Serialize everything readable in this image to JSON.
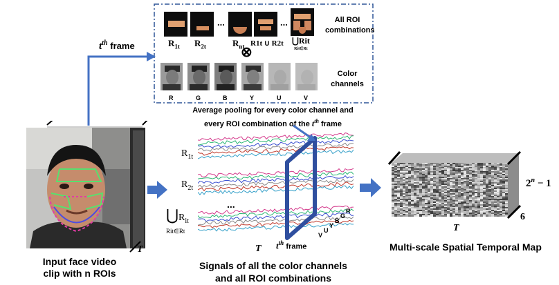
{
  "frame_label": {
    "base": "t",
    "sup": "th",
    "word": "frame"
  },
  "roi_row": {
    "labels": [
      {
        "base": "R",
        "sub": "1t"
      },
      {
        "base": "R",
        "sub": "2t"
      },
      {
        "base": "R",
        "sub": "nt"
      },
      {
        "text": "R1t ∪ R2t"
      }
    ],
    "dots": "...",
    "union_label": "⋃Rit",
    "union_sub": "Rit∈Rt",
    "caption_line1": "All ROI",
    "caption_line2": "combinations"
  },
  "tensor_symbol": "⊗",
  "channels": {
    "labels": [
      "R",
      "G",
      "B",
      "Y",
      "U",
      "V"
    ],
    "caption_line1": "Color",
    "caption_line2": "channels"
  },
  "pooling_caption": {
    "line1": "Average pooling for every color channel and",
    "line2": "every ROI combination of the",
    "line2_sup_base": "t",
    "line2_sup": "th",
    "line2_end": "frame"
  },
  "signals": {
    "r1t": {
      "base": "R",
      "sub": "1t"
    },
    "r2t": {
      "base": "R",
      "sub": "2t"
    },
    "dots": "...",
    "union": {
      "sym": "⋃",
      "base": "R",
      "sub": "it",
      "under": "Rit∈Rt"
    },
    "time_symbol": "T",
    "frame_base": "t",
    "frame_sup": "th",
    "frame_word": "frame",
    "channel_letters": [
      "V",
      "U",
      "Y",
      "B",
      "G",
      "R"
    ],
    "caption_line1": "Signals of all  the color channels",
    "caption_line2": "and all ROI combinations"
  },
  "input_video": {
    "time_symbol": "T",
    "caption_line1": "Input face video",
    "caption_line2": "clip with n ROIs"
  },
  "stmap": {
    "time_symbol": "T",
    "height_label": "2",
    "height_sup": "n",
    "height_tail": " − 1",
    "depth_label": "6",
    "caption": "Multi-scale Spatial Temporal Map"
  },
  "colors": {
    "arrow": "#4472c4",
    "dashed_box": "#2e5597",
    "frame_plane": "#2f4f9f",
    "signal_colors": [
      "#d43a8c",
      "#2bb673",
      "#3a4fd0",
      "#8a8a8a",
      "#c0392b",
      "#35a0c9"
    ]
  }
}
